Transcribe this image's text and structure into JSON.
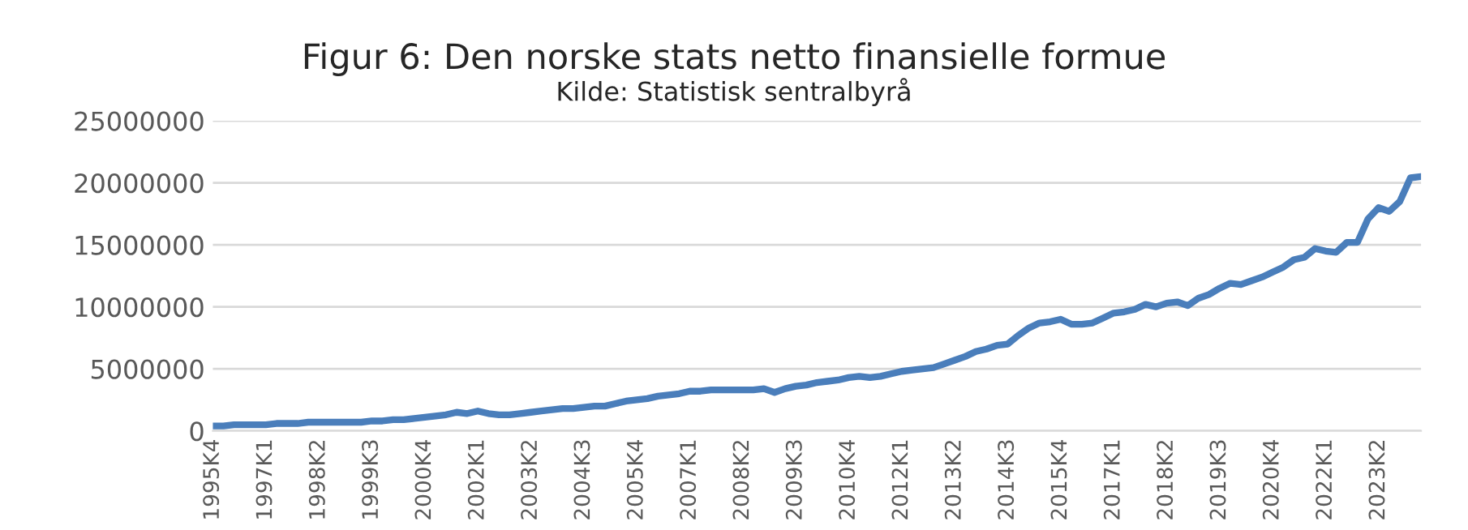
{
  "chart_data": {
    "type": "line",
    "title": "Figur 6: Den norske stats netto finansielle formue",
    "subtitle": "Kilde: Statistisk sentralbyrå",
    "categories": [
      "1995K4",
      null,
      null,
      null,
      null,
      "1997K1",
      null,
      null,
      null,
      null,
      "1998K2",
      null,
      null,
      null,
      null,
      "1999K3",
      null,
      null,
      null,
      null,
      "2000K4",
      null,
      null,
      null,
      null,
      "2002K1",
      null,
      null,
      null,
      null,
      "2003K2",
      null,
      null,
      null,
      null,
      "2004K3",
      null,
      null,
      null,
      null,
      "2005K4",
      null,
      null,
      null,
      null,
      "2007K1",
      null,
      null,
      null,
      null,
      "2008K2",
      null,
      null,
      null,
      null,
      "2009K3",
      null,
      null,
      null,
      null,
      "2010K4",
      null,
      null,
      null,
      null,
      "2012K1",
      null,
      null,
      null,
      null,
      "2013K2",
      null,
      null,
      null,
      null,
      "2014K3",
      null,
      null,
      null,
      null,
      "2015K4",
      null,
      null,
      null,
      null,
      "2017K1",
      null,
      null,
      null,
      null,
      "2018K2",
      null,
      null,
      null,
      null,
      "2019K3",
      null,
      null,
      null,
      null,
      "2020K4",
      null,
      null,
      null,
      null,
      "2022K1",
      null,
      null,
      null,
      null,
      "2023K2",
      null,
      null,
      null,
      null
    ],
    "series": [
      {
        "color": "#4a7ebb",
        "values": [
          400000,
          400000,
          500000,
          500000,
          500000,
          500000,
          600000,
          600000,
          600000,
          700000,
          700000,
          700000,
          700000,
          700000,
          700000,
          800000,
          800000,
          900000,
          900000,
          1000000,
          1100000,
          1200000,
          1300000,
          1500000,
          1400000,
          1600000,
          1400000,
          1300000,
          1300000,
          1400000,
          1500000,
          1600000,
          1700000,
          1800000,
          1800000,
          1900000,
          2000000,
          2000000,
          2200000,
          2400000,
          2500000,
          2600000,
          2800000,
          2900000,
          3000000,
          3200000,
          3200000,
          3300000,
          3300000,
          3300000,
          3300000,
          3300000,
          3400000,
          3100000,
          3400000,
          3600000,
          3700000,
          3900000,
          4000000,
          4100000,
          4300000,
          4400000,
          4300000,
          4400000,
          4600000,
          4800000,
          4900000,
          5000000,
          5100000,
          5400000,
          5700000,
          6000000,
          6400000,
          6600000,
          6900000,
          7000000,
          7700000,
          8300000,
          8700000,
          8800000,
          9000000,
          8600000,
          8600000,
          8700000,
          9100000,
          9500000,
          9600000,
          9800000,
          10200000,
          10000000,
          10300000,
          10400000,
          10100000,
          10700000,
          11000000,
          11500000,
          11900000,
          11800000,
          12100000,
          12400000,
          12800000,
          13200000,
          13800000,
          14000000,
          14700000,
          14500000,
          14400000,
          15200000,
          15200000,
          17100000,
          18000000,
          17700000,
          18500000,
          20400000,
          20500000
        ]
      }
    ],
    "ylim": [
      0,
      25000000
    ],
    "yticks": [
      0,
      5000000,
      10000000,
      15000000,
      20000000,
      25000000
    ],
    "grid": "y",
    "marker": "none",
    "line_style": "solid"
  }
}
